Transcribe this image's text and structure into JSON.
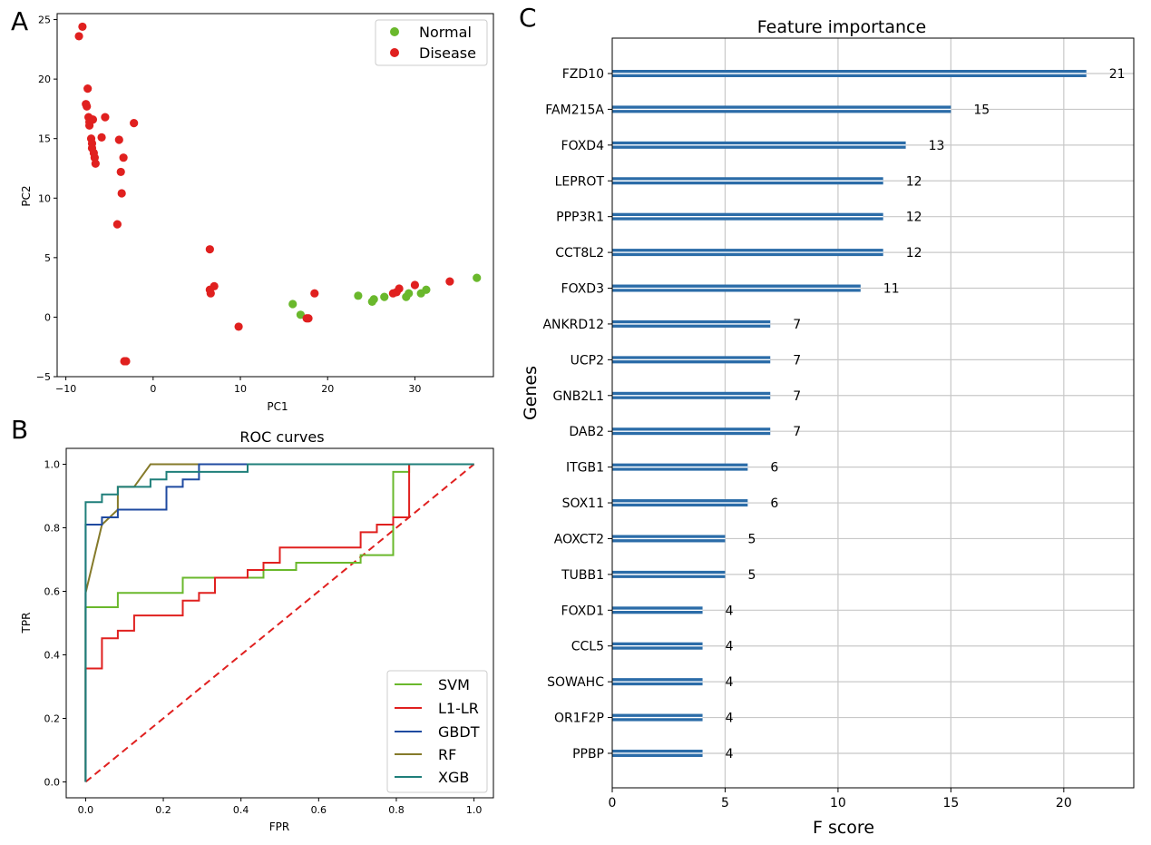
{
  "panel_labels": {
    "a": "A",
    "b": "B",
    "c": "C"
  },
  "chart_data": [
    {
      "type": "scatter",
      "xlabel": "PC1",
      "ylabel": "PC2",
      "xlim": [
        -11,
        39
      ],
      "ylim": [
        -5,
        25.5
      ],
      "x_ticks": [
        -10,
        0,
        10,
        20,
        30
      ],
      "y_ticks": [
        -5,
        0,
        5,
        10,
        15,
        20,
        25
      ],
      "legend_position": "top-right",
      "series": [
        {
          "name": "Normal",
          "color": "#6ab82c",
          "points": [
            [
              16.0,
              1.1
            ],
            [
              16.9,
              0.2
            ],
            [
              23.5,
              1.8
            ],
            [
              25.1,
              1.3
            ],
            [
              25.3,
              1.5
            ],
            [
              26.5,
              1.7
            ],
            [
              29.0,
              1.7
            ],
            [
              29.3,
              2.0
            ],
            [
              30.7,
              2.0
            ],
            [
              31.3,
              2.3
            ],
            [
              37.1,
              3.3
            ]
          ]
        },
        {
          "name": "Disease",
          "color": "#e0201f",
          "points": [
            [
              -8.5,
              23.6
            ],
            [
              -8.1,
              24.4
            ],
            [
              -7.5,
              19.2
            ],
            [
              -7.7,
              17.9
            ],
            [
              -7.6,
              17.7
            ],
            [
              -7.4,
              16.8
            ],
            [
              -7.3,
              16.4
            ],
            [
              -7.3,
              16.1
            ],
            [
              -7.1,
              16.6
            ],
            [
              -6.9,
              16.6
            ],
            [
              -7.1,
              15.0
            ],
            [
              -7.0,
              14.6
            ],
            [
              -7.0,
              14.2
            ],
            [
              -6.8,
              13.8
            ],
            [
              -6.7,
              13.4
            ],
            [
              -6.6,
              12.9
            ],
            [
              -5.9,
              15.1
            ],
            [
              -5.5,
              16.8
            ],
            [
              -2.2,
              16.3
            ],
            [
              -3.9,
              14.9
            ],
            [
              -3.4,
              13.4
            ],
            [
              -3.7,
              12.2
            ],
            [
              -3.6,
              10.4
            ],
            [
              -4.1,
              7.8
            ],
            [
              -3.3,
              -3.7
            ],
            [
              -3.1,
              -3.7
            ],
            [
              6.5,
              5.7
            ],
            [
              6.5,
              2.3
            ],
            [
              6.6,
              2.0
            ],
            [
              7.0,
              2.6
            ],
            [
              9.8,
              -0.8
            ],
            [
              17.6,
              -0.1
            ],
            [
              17.8,
              -0.1
            ],
            [
              18.5,
              2.0
            ],
            [
              27.5,
              2.0
            ],
            [
              27.9,
              2.1
            ],
            [
              28.2,
              2.4
            ],
            [
              30.0,
              2.7
            ],
            [
              34.0,
              3.0
            ]
          ]
        }
      ]
    },
    {
      "type": "line",
      "title": "ROC curves",
      "xlabel": "FPR",
      "ylabel": "TPR",
      "xlim": [
        -0.05,
        1.05
      ],
      "ylim": [
        -0.05,
        1.05
      ],
      "x_ticks": [
        0.0,
        0.2,
        0.4,
        0.6,
        0.8,
        1.0
      ],
      "y_ticks": [
        0.0,
        0.2,
        0.4,
        0.6,
        0.8,
        1.0
      ],
      "tick_labels": [
        "0.0",
        "0.2",
        "0.4",
        "0.6",
        "0.8",
        "1.0"
      ],
      "legend_position": "lower-right",
      "series": [
        {
          "name": "SVM",
          "color": "#6ab82c",
          "points": [
            [
              0,
              0
            ],
            [
              0,
              0.55
            ],
            [
              0.083,
              0.55
            ],
            [
              0.083,
              0.595
            ],
            [
              0.25,
              0.595
            ],
            [
              0.25,
              0.643
            ],
            [
              0.458,
              0.643
            ],
            [
              0.458,
              0.667
            ],
            [
              0.542,
              0.667
            ],
            [
              0.542,
              0.69
            ],
            [
              0.708,
              0.69
            ],
            [
              0.708,
              0.714
            ],
            [
              0.792,
              0.714
            ],
            [
              0.792,
              0.976
            ],
            [
              0.833,
              0.976
            ],
            [
              0.833,
              1.0
            ],
            [
              1.0,
              1.0
            ]
          ]
        },
        {
          "name": "L1-LR",
          "color": "#e0201f",
          "points": [
            [
              0,
              0
            ],
            [
              0,
              0.357
            ],
            [
              0.042,
              0.357
            ],
            [
              0.042,
              0.452
            ],
            [
              0.083,
              0.452
            ],
            [
              0.083,
              0.476
            ],
            [
              0.125,
              0.476
            ],
            [
              0.125,
              0.524
            ],
            [
              0.25,
              0.524
            ],
            [
              0.25,
              0.571
            ],
            [
              0.292,
              0.571
            ],
            [
              0.292,
              0.595
            ],
            [
              0.333,
              0.595
            ],
            [
              0.333,
              0.643
            ],
            [
              0.417,
              0.643
            ],
            [
              0.417,
              0.667
            ],
            [
              0.458,
              0.667
            ],
            [
              0.458,
              0.69
            ],
            [
              0.5,
              0.69
            ],
            [
              0.5,
              0.738
            ],
            [
              0.708,
              0.738
            ],
            [
              0.708,
              0.786
            ],
            [
              0.75,
              0.786
            ],
            [
              0.75,
              0.81
            ],
            [
              0.792,
              0.81
            ],
            [
              0.792,
              0.833
            ],
            [
              0.833,
              0.833
            ],
            [
              0.833,
              1.0
            ],
            [
              1.0,
              1.0
            ]
          ]
        },
        {
          "name": "GBDT",
          "color": "#1f4aa0",
          "points": [
            [
              0,
              0
            ],
            [
              0,
              0.81
            ],
            [
              0.042,
              0.81
            ],
            [
              0.042,
              0.833
            ],
            [
              0.083,
              0.833
            ],
            [
              0.083,
              0.857
            ],
            [
              0.208,
              0.857
            ],
            [
              0.208,
              0.929
            ],
            [
              0.25,
              0.929
            ],
            [
              0.25,
              0.952
            ],
            [
              0.292,
              0.952
            ],
            [
              0.292,
              1.0
            ],
            [
              1.0,
              1.0
            ]
          ]
        },
        {
          "name": "RF",
          "color": "#857a2a",
          "points": [
            [
              0,
              0
            ],
            [
              0,
              0.595
            ],
            [
              0.042,
              0.81
            ],
            [
              0.083,
              0.857
            ],
            [
              0.083,
              0.929
            ],
            [
              0.125,
              0.929
            ],
            [
              0.167,
              1.0
            ],
            [
              1.0,
              1.0
            ]
          ]
        },
        {
          "name": "XGB",
          "color": "#1f7f7a",
          "points": [
            [
              0,
              0
            ],
            [
              0,
              0.881
            ],
            [
              0.042,
              0.881
            ],
            [
              0.042,
              0.905
            ],
            [
              0.083,
              0.905
            ],
            [
              0.083,
              0.929
            ],
            [
              0.167,
              0.929
            ],
            [
              0.167,
              0.952
            ],
            [
              0.208,
              0.952
            ],
            [
              0.208,
              0.976
            ],
            [
              0.292,
              0.976
            ],
            [
              0.417,
              0.976
            ],
            [
              0.417,
              1.0
            ],
            [
              1.0,
              1.0
            ]
          ]
        },
        {
          "name": "",
          "color": "#e0201f",
          "dashed": true,
          "points": [
            [
              0,
              0
            ],
            [
              1,
              1
            ]
          ]
        }
      ]
    },
    {
      "type": "bar",
      "orientation": "horizontal",
      "title": "Feature importance",
      "xlabel": "F score",
      "ylabel": "Genes",
      "xlim": [
        0,
        23.1
      ],
      "x_ticks": [
        0,
        5,
        10,
        15,
        20
      ],
      "grid": true,
      "bar_color": "#2b6ca8",
      "categories": [
        "FZD10",
        "FAM215A",
        "FOXD4",
        "LEPROT",
        "PPP3R1",
        "CCT8L2",
        "FOXD3",
        "ANKRD12",
        "UCP2",
        "GNB2L1",
        "DAB2",
        "ITGB1",
        "SOX11",
        "AOXCT2",
        "TUBB1",
        "FOXD1",
        "CCL5",
        "SOWAHC",
        "OR1F2P",
        "PPBP"
      ],
      "values": [
        21,
        15,
        13,
        12,
        12,
        12,
        11,
        7,
        7,
        7,
        7,
        6,
        6,
        5,
        5,
        4,
        4,
        4,
        4,
        4
      ]
    }
  ]
}
